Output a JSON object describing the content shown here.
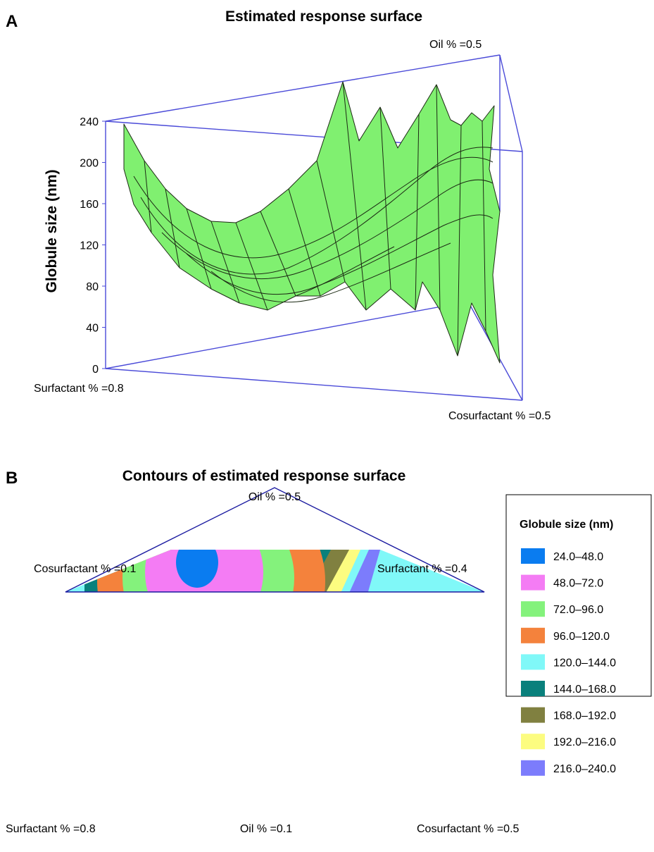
{
  "chart_data": [
    {
      "panel": "A",
      "type": "surface-3d",
      "title": "Estimated response surface",
      "zlabel": "Globule size (nm)",
      "zlim": [
        0,
        240
      ],
      "z_ticks": [
        0,
        40,
        80,
        120,
        160,
        200,
        240
      ],
      "vertex_labels": [
        "Oil % =0.5",
        "Surfactant % =0.8",
        "Cosurfactant % =0.5"
      ],
      "surface_color": "#80f070"
    },
    {
      "panel": "B",
      "type": "ternary-contour",
      "title": "Contours of estimated response surface",
      "vertex_labels": {
        "top": "Oil % =0.5",
        "left": "Surfactant % =0.8",
        "right": "Cosurfactant % =0.5"
      },
      "edge_labels": {
        "left": "Cosurfactant % =0.1",
        "right": "Surfactant % =0.4",
        "bottom": "Oil % =0.1"
      },
      "legend": {
        "title": "Globule size (nm)",
        "items": [
          {
            "label": "24.0–48.0",
            "color": "#0a7cf0"
          },
          {
            "label": "48.0–72.0",
            "color": "#f47cf4"
          },
          {
            "label": "72.0–96.0",
            "color": "#84f27c"
          },
          {
            "label": "96.0–120.0",
            "color": "#f4823c"
          },
          {
            "label": "120.0–144.0",
            "color": "#80f8f8"
          },
          {
            "label": "144.0–168.0",
            "color": "#0a807c"
          },
          {
            "label": "168.0–192.0",
            "color": "#808040"
          },
          {
            "label": "192.0–216.0",
            "color": "#fcfc80"
          },
          {
            "label": "216.0–240.0",
            "color": "#7c7cfc"
          }
        ]
      }
    }
  ]
}
